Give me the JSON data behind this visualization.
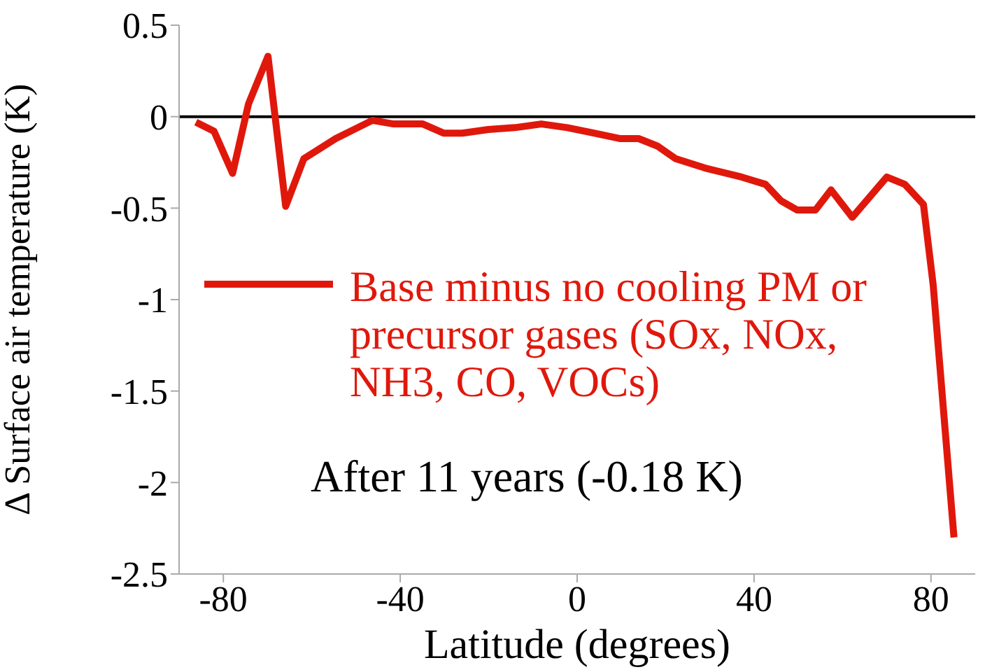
{
  "chart_data": {
    "type": "line",
    "xlabel": "Latitude (degrees)",
    "ylabel": "Δ Surface air temperature (K)",
    "x": [
      -86.2,
      -82.1,
      -77.9,
      -74.3,
      -69.9,
      -65.9,
      -61.8,
      -54.6,
      -46.3,
      -41.5,
      -34.9,
      -30.2,
      -26,
      -20.1,
      -14.1,
      -8.1,
      -2.2,
      3.8,
      9.8,
      13.9,
      18.1,
      22.3,
      28.8,
      37.2,
      42.6,
      46.1,
      49.7,
      53.9,
      57.4,
      62.2,
      70,
      74.1,
      78.3,
      80.5,
      85.2
    ],
    "series": [
      {
        "name": "Base minus no cooling PM or precursor gases (SOx, NOx, NH3, CO, VOCs)",
        "color": "#e0180c",
        "values": [
          -0.03,
          -0.08,
          -0.31,
          0.07,
          0.33,
          -0.49,
          -0.23,
          -0.12,
          -0.02,
          -0.04,
          -0.04,
          -0.09,
          -0.09,
          -0.07,
          -0.06,
          -0.04,
          -0.06,
          -0.09,
          -0.12,
          -0.12,
          -0.16,
          -0.23,
          -0.28,
          -0.33,
          -0.37,
          -0.46,
          -0.51,
          -0.51,
          -0.4,
          -0.55,
          -0.33,
          -0.37,
          -0.48,
          -0.92,
          -2.3
        ]
      }
    ],
    "xlim": [
      -90,
      90
    ],
    "xticks": [
      -80,
      -40,
      0,
      40,
      80
    ],
    "ylim": [
      -2.5,
      0.5
    ],
    "yticks": [
      0.5,
      0,
      -0.5,
      -1,
      -1.5,
      -2,
      -2.5
    ],
    "ref_lines": [
      {
        "axis": "y",
        "value": 0,
        "color": "#000000"
      }
    ],
    "annotations": [
      "After 11 years (-0.18 K)"
    ],
    "legend": "left",
    "grid": false,
    "marker": "none",
    "line_style": "solid"
  }
}
